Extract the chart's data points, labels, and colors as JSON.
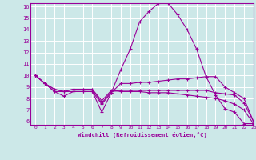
{
  "xlabel": "Windchill (Refroidissement éolien,°C)",
  "xlim": [
    -0.5,
    23
  ],
  "ylim": [
    5.7,
    16.3
  ],
  "xticks": [
    0,
    1,
    2,
    3,
    4,
    5,
    6,
    7,
    8,
    9,
    10,
    11,
    12,
    13,
    14,
    15,
    16,
    17,
    18,
    19,
    20,
    21,
    22,
    23
  ],
  "yticks": [
    6,
    7,
    8,
    9,
    10,
    11,
    12,
    13,
    14,
    15,
    16
  ],
  "bg_color": "#cce8e8",
  "line_color": "#990099",
  "grid_color": "#ffffff",
  "series": [
    [
      10.0,
      9.3,
      8.6,
      8.2,
      8.6,
      8.6,
      8.6,
      6.8,
      8.5,
      10.5,
      12.3,
      14.7,
      15.6,
      16.3,
      16.3,
      15.3,
      14.0,
      12.3,
      9.9,
      8.3,
      7.1,
      6.8,
      5.8,
      5.8
    ],
    [
      10.0,
      9.3,
      8.6,
      8.6,
      8.6,
      8.6,
      8.6,
      7.5,
      8.5,
      9.3,
      9.3,
      9.4,
      9.4,
      9.5,
      9.6,
      9.7,
      9.7,
      9.8,
      9.9,
      9.9,
      9.0,
      8.5,
      8.0,
      6.0
    ],
    [
      10.0,
      9.3,
      8.8,
      8.6,
      8.8,
      8.8,
      8.8,
      7.6,
      8.6,
      8.7,
      8.7,
      8.7,
      8.7,
      8.7,
      8.7,
      8.7,
      8.7,
      8.7,
      8.7,
      8.5,
      8.4,
      8.3,
      7.6,
      6.0
    ],
    [
      10.0,
      9.3,
      8.8,
      8.6,
      8.8,
      8.8,
      8.8,
      7.8,
      8.7,
      8.6,
      8.6,
      8.6,
      8.5,
      8.5,
      8.5,
      8.4,
      8.3,
      8.2,
      8.1,
      8.0,
      7.8,
      7.5,
      7.0,
      5.8
    ]
  ]
}
